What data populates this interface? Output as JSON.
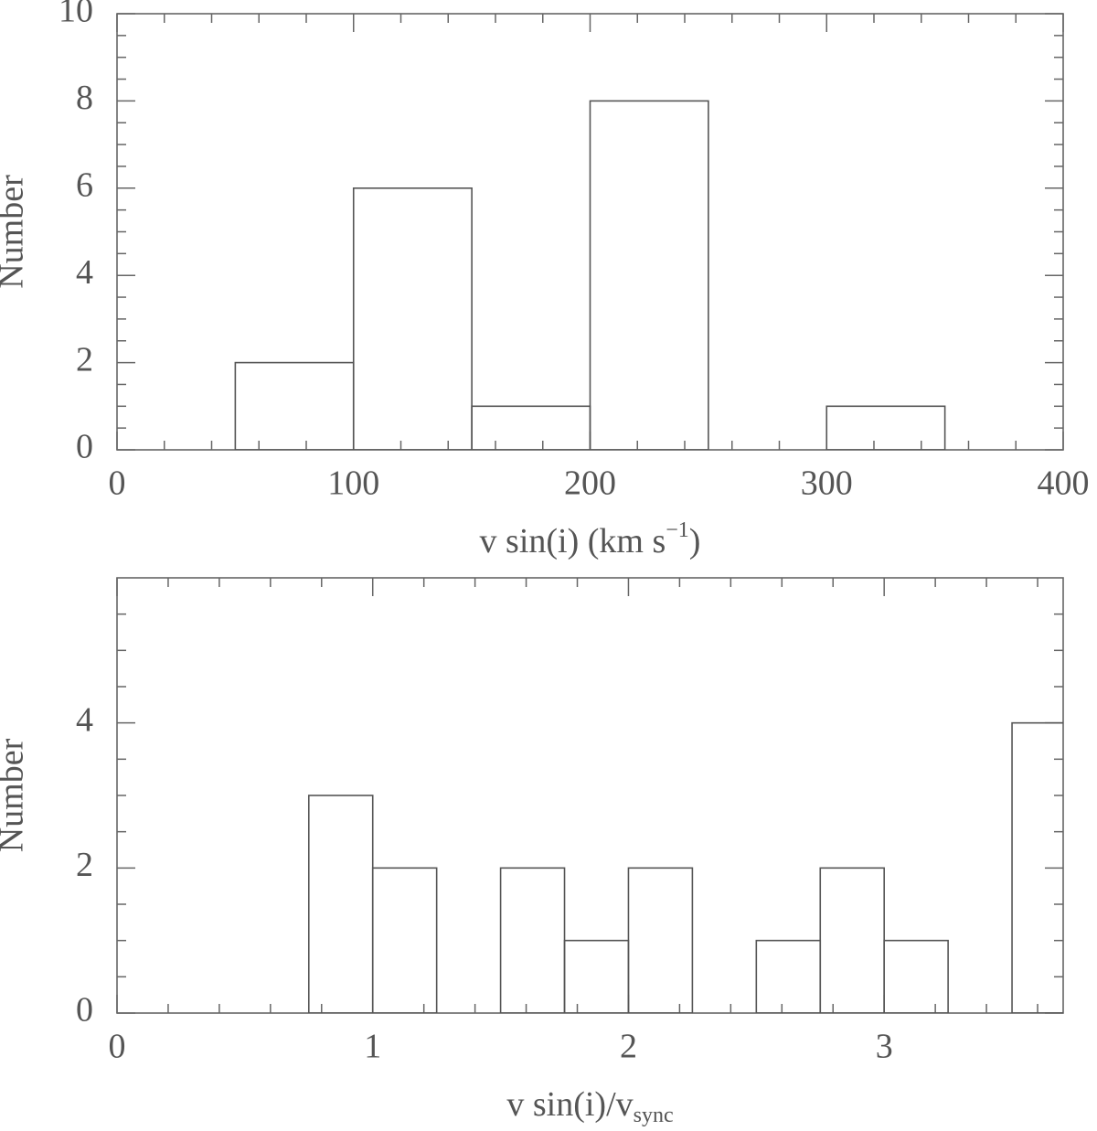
{
  "chart_data": [
    {
      "type": "histogram",
      "y_label": "Number",
      "x_label": "v sin(i) (km s",
      "x_label_sup": "−1",
      "x_label_end": ")",
      "bins": [
        0,
        50,
        100,
        150,
        200,
        250,
        300,
        350,
        400
      ],
      "values": [
        0,
        2,
        6,
        1,
        8,
        0,
        1,
        0
      ],
      "xlim": [
        0,
        400
      ],
      "ylim": [
        0,
        10
      ],
      "xticks": [
        0,
        100,
        200,
        300,
        400
      ],
      "yticks": [
        0,
        2,
        4,
        6,
        8,
        10
      ],
      "color": "#555555"
    },
    {
      "type": "histogram",
      "y_label": "Number",
      "x_label": "v sin(i)/v",
      "x_label_sub": "sync",
      "bins": [
        0,
        0.25,
        0.5,
        0.75,
        1,
        1.25,
        1.5,
        1.75,
        2,
        2.25,
        2.5,
        2.75,
        3,
        3.25,
        3.5,
        3.75
      ],
      "values": [
        0,
        0,
        0,
        3,
        2,
        0,
        2,
        1,
        2,
        0,
        1,
        2,
        1,
        0,
        4
      ],
      "xlim": [
        0,
        3.7
      ],
      "ylim": [
        0,
        6
      ],
      "xticks": [
        0,
        1,
        2,
        3
      ],
      "yticks": [
        0,
        2,
        4
      ],
      "color": "#555555"
    }
  ]
}
